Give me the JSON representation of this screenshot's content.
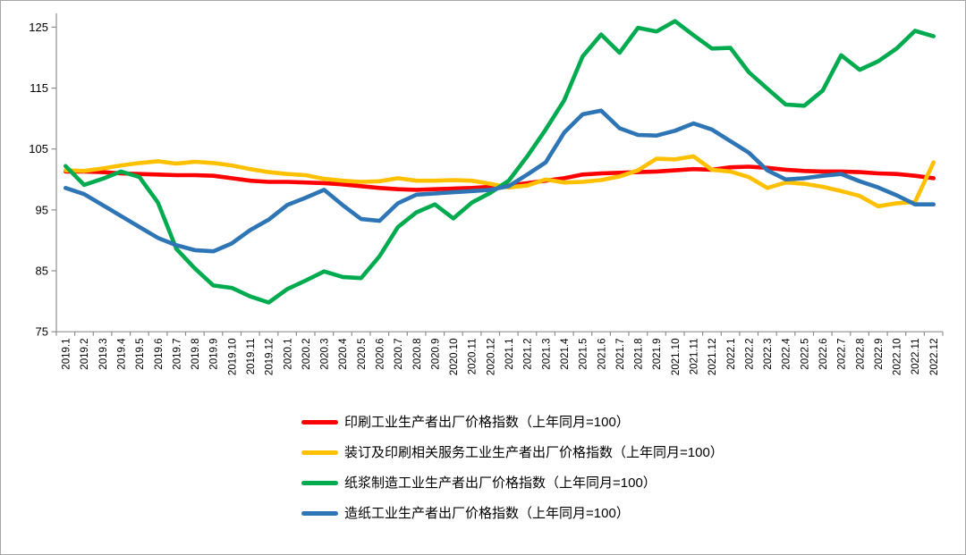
{
  "figure": {
    "background": "#ffffff",
    "border_color": "#a6a6a6"
  },
  "chart_data": {
    "type": "line",
    "title": "",
    "xlabel": "",
    "ylabel": "",
    "ylim": [
      75,
      125
    ],
    "yticks": [
      75,
      85,
      95,
      105,
      115,
      125
    ],
    "grid": false,
    "legend_position": "bottom-left",
    "categories": [
      "2019.1",
      "2019.2",
      "2019.3",
      "2019.4",
      "2019.5",
      "2019.6",
      "2019.7",
      "2019.8",
      "2019.9",
      "2019.10",
      "2019.11",
      "2019.12",
      "2020.1",
      "2020.2",
      "2020.3",
      "2020.4",
      "2020.5",
      "2020.6",
      "2020.7",
      "2020.8",
      "2020.9",
      "2020.10",
      "2020.11",
      "2020.12",
      "2021.1",
      "2021.2",
      "2021.3",
      "2021.4",
      "2021.5",
      "2021.6",
      "2021.7",
      "2021.8",
      "2021.9",
      "2021.10",
      "2021.11",
      "2021.12",
      "2022.1",
      "2022.2",
      "2022.3",
      "2022.4",
      "2022.5",
      "2022.6",
      "2022.7",
      "2022.8",
      "2022.9",
      "2022.10",
      "2022.11",
      "2022.12"
    ],
    "series": [
      {
        "key": "printing-ppi",
        "name": "印刷工业生产者出厂价格指数（上年同月=100）",
        "color": "#ff0000",
        "values": [
          101.3,
          101.3,
          101.2,
          101.0,
          100.9,
          100.8,
          100.7,
          100.7,
          100.6,
          100.2,
          99.8,
          99.6,
          99.6,
          99.5,
          99.4,
          99.2,
          98.9,
          98.6,
          98.4,
          98.3,
          98.4,
          98.5,
          98.6,
          98.8,
          99.0,
          99.4,
          99.8,
          100.2,
          100.8,
          101.0,
          101.1,
          101.2,
          101.3,
          101.5,
          101.7,
          101.6,
          102.0,
          102.1,
          101.9,
          101.6,
          101.4,
          101.3,
          101.3,
          101.2,
          101.0,
          100.9,
          100.6,
          100.2
        ]
      },
      {
        "key": "binding-printing-services-ppi",
        "name": "装订及印刷相关服务工业生产者出厂价格指数（上年同月=100）",
        "color": "#ffc000",
        "values": [
          101.5,
          101.4,
          101.8,
          102.3,
          102.7,
          103.0,
          102.6,
          102.9,
          102.7,
          102.3,
          101.7,
          101.2,
          100.9,
          100.7,
          100.1,
          99.8,
          99.6,
          99.7,
          100.2,
          99.8,
          99.8,
          99.9,
          99.8,
          99.3,
          98.7,
          99.0,
          100.0,
          99.5,
          99.6,
          99.9,
          100.5,
          101.5,
          103.4,
          103.3,
          103.8,
          101.6,
          101.3,
          100.4,
          98.6,
          99.5,
          99.3,
          98.8,
          98.1,
          97.3,
          95.6,
          96.1,
          96.3,
          102.8
        ]
      },
      {
        "key": "pulp-manufacturing-ppi",
        "name": "纸浆制造工业生产者出厂价格指数（上年同月=100）",
        "color": "#00ab50",
        "values": [
          102.2,
          99.1,
          100.1,
          101.3,
          100.4,
          96.2,
          88.6,
          85.4,
          82.6,
          82.2,
          80.8,
          79.8,
          82.0,
          83.4,
          84.9,
          84.0,
          83.8,
          87.4,
          92.2,
          94.6,
          95.9,
          93.6,
          96.2,
          97.8,
          99.8,
          103.8,
          108.2,
          113.0,
          120.2,
          123.8,
          120.8,
          124.9,
          124.3,
          126.0,
          123.7,
          121.5,
          121.6,
          117.6,
          114.9,
          112.3,
          112.1,
          114.6,
          120.4,
          118.0,
          119.4,
          121.5,
          124.4,
          123.5
        ]
      },
      {
        "key": "papermaking-ppi",
        "name": "造纸工业生产者出厂价格指数（上年同月=100）",
        "color": "#2e75b6",
        "values": [
          98.6,
          97.6,
          95.8,
          94.0,
          92.2,
          90.4,
          89.2,
          88.4,
          88.2,
          89.5,
          91.7,
          93.4,
          95.8,
          97.0,
          98.3,
          95.8,
          93.5,
          93.2,
          96.1,
          97.5,
          97.7,
          97.9,
          98.1,
          98.3,
          98.9,
          100.8,
          102.8,
          107.7,
          110.7,
          111.3,
          108.4,
          107.3,
          107.2,
          108.0,
          109.2,
          108.2,
          106.3,
          104.4,
          101.5,
          100.0,
          100.2,
          100.6,
          100.9,
          99.7,
          98.7,
          97.4,
          95.9,
          95.9
        ]
      }
    ]
  }
}
